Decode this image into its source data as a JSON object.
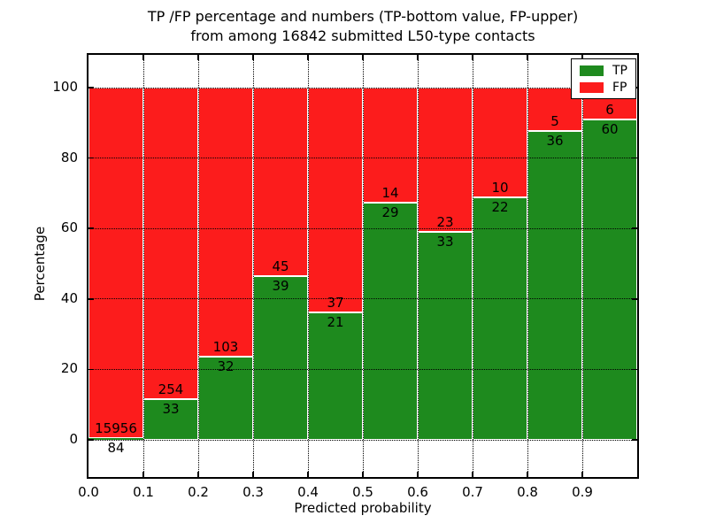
{
  "figure": {
    "title_line1": "TP /FP percentage and numbers (TP-bottom value, FP-upper)",
    "title_line2": "from among 16842 submitted L50-type contacts",
    "xlabel": "Predicted probability",
    "ylabel": "Percentage",
    "background": "#ffffff"
  },
  "legend": {
    "items": [
      {
        "label": "TP",
        "color": "#1e8a1e"
      },
      {
        "label": "FP",
        "color": "#fc1c1c"
      }
    ]
  },
  "axis": {
    "xtick_labels": [
      "0.0",
      "0.1",
      "0.2",
      "0.3",
      "0.4",
      "0.5",
      "0.6",
      "0.7",
      "0.8",
      "0.9"
    ],
    "ytick_labels": [
      "0",
      "20",
      "40",
      "60",
      "80",
      "100"
    ],
    "ytick_values": [
      0,
      20,
      40,
      60,
      80,
      100
    ]
  },
  "chart_data": {
    "type": "bar",
    "stacked": true,
    "normalized": "each bin scaled to 100%",
    "title": "TP /FP percentage and numbers (TP-bottom value, FP-upper) from among 16842 submitted L50-type contacts",
    "xlabel": "Predicted probability",
    "ylabel": "Percentage",
    "total_contacts": 16842,
    "x_bins": [
      [
        0.0,
        0.1
      ],
      [
        0.1,
        0.2
      ],
      [
        0.2,
        0.3
      ],
      [
        0.3,
        0.4
      ],
      [
        0.4,
        0.5
      ],
      [
        0.5,
        0.6
      ],
      [
        0.6,
        0.7
      ],
      [
        0.7,
        0.8
      ],
      [
        0.8,
        0.9
      ],
      [
        0.9,
        1.0
      ]
    ],
    "series": [
      {
        "name": "TP",
        "color": "#1e8a1e",
        "counts": [
          84,
          33,
          32,
          39,
          21,
          29,
          33,
          22,
          36,
          60
        ]
      },
      {
        "name": "FP",
        "color": "#fc1c1c",
        "counts": [
          15956,
          254,
          103,
          45,
          37,
          14,
          23,
          10,
          5,
          6
        ]
      }
    ],
    "bar_label_rule": "TP count printed just below the TP/FP boundary, FP count just above it",
    "ylim": [
      0,
      100
    ],
    "grid": "dotted both axes",
    "legend_position": "upper right"
  }
}
